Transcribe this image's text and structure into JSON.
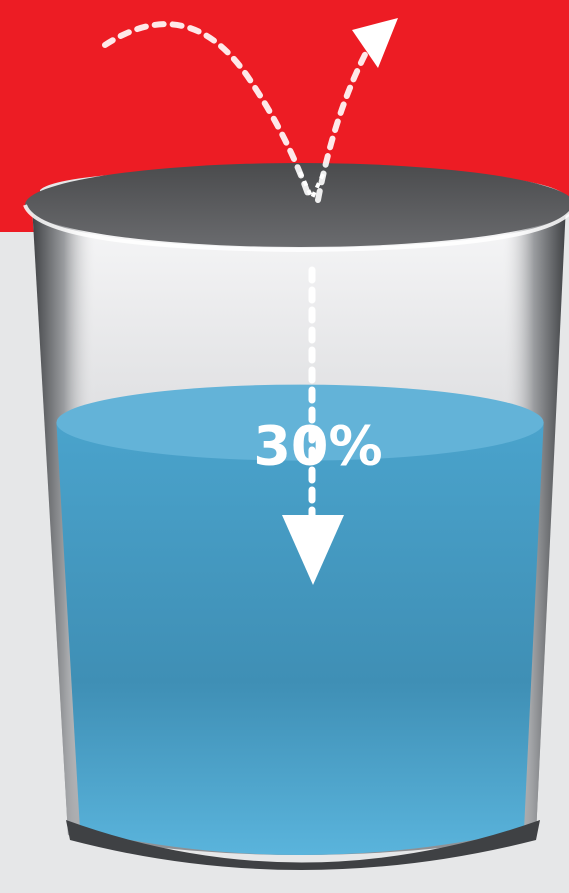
{
  "diagram": {
    "fill_label": "30%",
    "fill_level": 0.3,
    "icons": {
      "rebound_arrow": "curved-dotted-arrow-icon",
      "drop_arrow": "straight-dotted-arrow-icon"
    }
  },
  "colors": {
    "red_band": "#ed1c24",
    "background": "#e6e7e8",
    "cup_rim": "#58595b",
    "liquid": "#4aa3cc",
    "liquid_top": "#63b3d8",
    "arrow": "#ffffff"
  }
}
